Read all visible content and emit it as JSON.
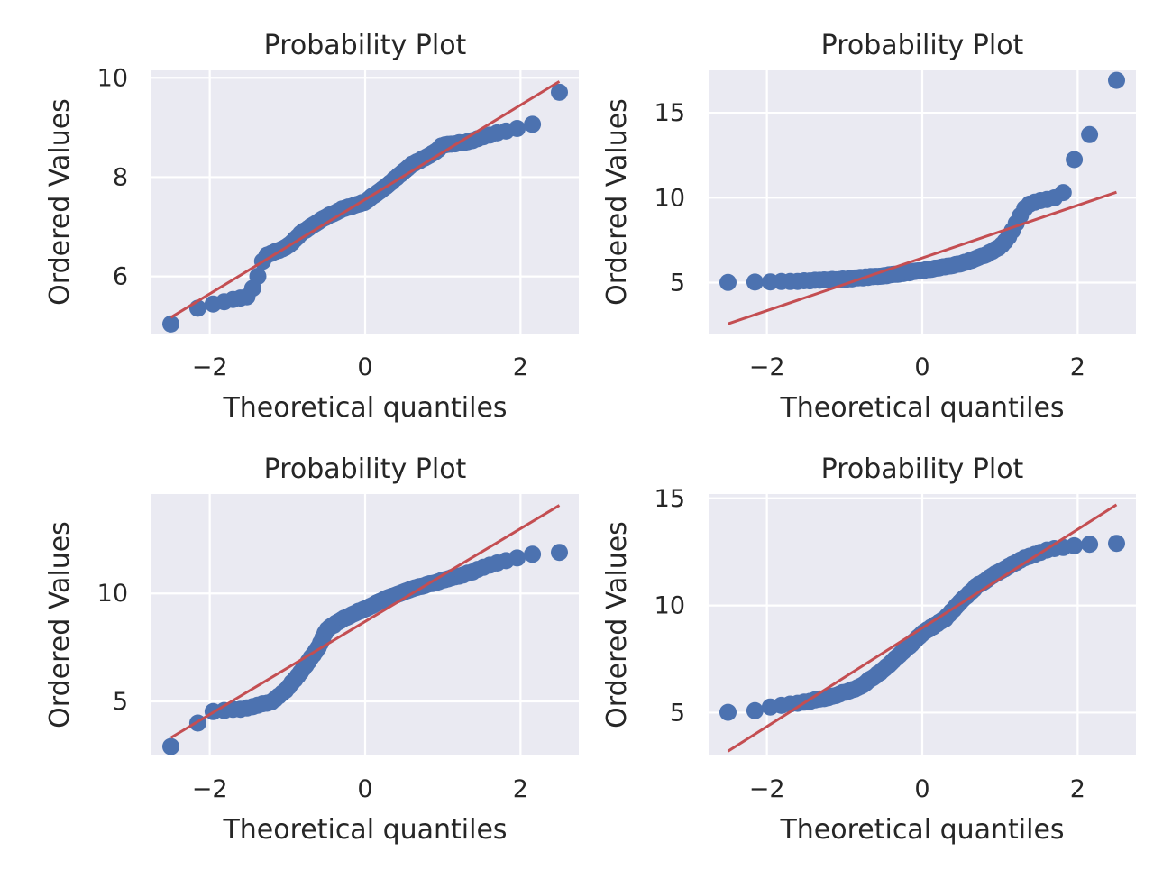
{
  "colors": {
    "background": "#EAEAF2",
    "grid": "#FFFFFF",
    "points": "#4C72B0",
    "fit_line": "#C44E52",
    "text": "#262626"
  },
  "chart_data": [
    {
      "type": "scatter",
      "title": "Probability Plot",
      "xlabel": "Theoretical quantiles",
      "ylabel": "Ordered Values",
      "grid": true,
      "xlim": [
        -2.75,
        2.75
      ],
      "ylim": [
        4.85,
        10.15
      ],
      "xticks": [
        -2,
        0,
        2
      ],
      "xtick_labels": [
        "−2",
        "0",
        "2"
      ],
      "yticks": [
        6,
        8,
        10
      ],
      "ytick_labels": [
        "6",
        "8",
        "10"
      ],
      "fit_line": {
        "slope": 0.95,
        "intercept": 7.55
      },
      "quantile_curve": [
        [
          -2.5,
          5.05
        ],
        [
          -2.1,
          5.4
        ],
        [
          -1.5,
          5.6
        ],
        [
          -1.4,
          5.9
        ],
        [
          -1.3,
          6.4
        ],
        [
          -1.0,
          6.6
        ],
        [
          -0.8,
          6.9
        ],
        [
          -0.5,
          7.2
        ],
        [
          -0.3,
          7.35
        ],
        [
          0.0,
          7.5
        ],
        [
          0.3,
          7.85
        ],
        [
          0.6,
          8.25
        ],
        [
          0.9,
          8.5
        ],
        [
          1.0,
          8.65
        ],
        [
          1.3,
          8.7
        ],
        [
          1.6,
          8.85
        ],
        [
          1.9,
          8.95
        ],
        [
          2.15,
          9.05
        ],
        [
          2.5,
          9.7
        ]
      ]
    },
    {
      "type": "scatter",
      "title": "Probability Plot",
      "xlabel": "Theoretical quantiles",
      "ylabel": "Ordered Values",
      "grid": true,
      "xlim": [
        -2.75,
        2.75
      ],
      "ylim": [
        2.0,
        17.5
      ],
      "xticks": [
        -2,
        0,
        2
      ],
      "xtick_labels": [
        "−2",
        "0",
        "2"
      ],
      "yticks": [
        5,
        10,
        15
      ],
      "ytick_labels": [
        "5",
        "10",
        "15"
      ],
      "fit_line": {
        "slope": 1.55,
        "intercept": 6.45
      },
      "quantile_curve": [
        [
          -2.5,
          5.0
        ],
        [
          -2.1,
          5.05
        ],
        [
          -1.5,
          5.1
        ],
        [
          -1.0,
          5.2
        ],
        [
          -0.5,
          5.4
        ],
        [
          0.0,
          5.7
        ],
        [
          0.5,
          6.1
        ],
        [
          0.8,
          6.6
        ],
        [
          1.0,
          7.1
        ],
        [
          1.1,
          7.6
        ],
        [
          1.2,
          8.4
        ],
        [
          1.3,
          9.3
        ],
        [
          1.4,
          9.7
        ],
        [
          1.6,
          9.9
        ],
        [
          1.8,
          10.1
        ],
        [
          1.95,
          12.2
        ],
        [
          2.15,
          13.7
        ],
        [
          2.5,
          16.9
        ]
      ]
    },
    {
      "type": "scatter",
      "title": "Probability Plot",
      "xlabel": "Theoretical quantiles",
      "ylabel": "Ordered Values",
      "grid": true,
      "xlim": [
        -2.75,
        2.75
      ],
      "ylim": [
        2.5,
        14.6
      ],
      "xticks": [
        -2,
        0,
        2
      ],
      "xtick_labels": [
        "−2",
        "0",
        "2"
      ],
      "yticks": [
        5,
        10
      ],
      "ytick_labels": [
        "5",
        "10"
      ],
      "fit_line": {
        "slope": 2.15,
        "intercept": 8.7
      },
      "quantile_curve": [
        [
          -2.5,
          2.9
        ],
        [
          -2.15,
          4.0
        ],
        [
          -2.0,
          4.5
        ],
        [
          -1.5,
          4.7
        ],
        [
          -1.2,
          5.0
        ],
        [
          -1.0,
          5.6
        ],
        [
          -0.8,
          6.5
        ],
        [
          -0.6,
          7.5
        ],
        [
          -0.5,
          8.3
        ],
        [
          -0.3,
          8.8
        ],
        [
          0.0,
          9.3
        ],
        [
          0.3,
          9.8
        ],
        [
          0.6,
          10.2
        ],
        [
          1.0,
          10.6
        ],
        [
          1.3,
          10.9
        ],
        [
          1.6,
          11.3
        ],
        [
          1.9,
          11.6
        ],
        [
          2.15,
          11.8
        ],
        [
          2.5,
          11.9
        ]
      ]
    },
    {
      "type": "scatter",
      "title": "Probability Plot",
      "xlabel": "Theoretical quantiles",
      "ylabel": "Ordered Values",
      "grid": true,
      "xlim": [
        -2.75,
        2.75
      ],
      "ylim": [
        3.0,
        15.2
      ],
      "xticks": [
        -2,
        0,
        2
      ],
      "xtick_labels": [
        "−2",
        "0",
        "2"
      ],
      "yticks": [
        5,
        10,
        15
      ],
      "ytick_labels": [
        "5",
        "10",
        "15"
      ],
      "fit_line": {
        "slope": 2.3,
        "intercept": 8.95
      },
      "quantile_curve": [
        [
          -2.5,
          5.0
        ],
        [
          -2.15,
          5.1
        ],
        [
          -1.9,
          5.3
        ],
        [
          -1.5,
          5.5
        ],
        [
          -1.2,
          5.7
        ],
        [
          -0.8,
          6.2
        ],
        [
          -0.5,
          7.0
        ],
        [
          -0.2,
          8.0
        ],
        [
          0.0,
          8.7
        ],
        [
          0.3,
          9.4
        ],
        [
          0.5,
          10.2
        ],
        [
          0.7,
          10.9
        ],
        [
          1.0,
          11.6
        ],
        [
          1.3,
          12.2
        ],
        [
          1.6,
          12.6
        ],
        [
          1.9,
          12.75
        ],
        [
          2.15,
          12.85
        ],
        [
          2.5,
          12.9
        ]
      ]
    }
  ]
}
